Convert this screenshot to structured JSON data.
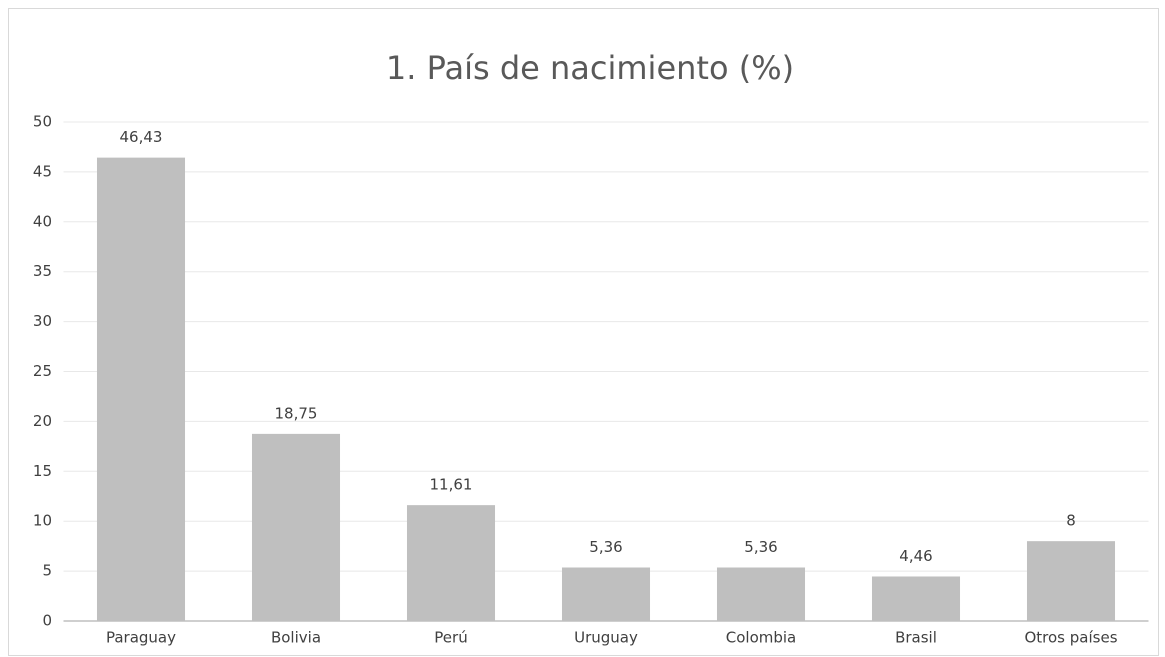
{
  "chart_data": {
    "type": "bar",
    "title": "1. País de nacimiento (%)",
    "categories": [
      "Paraguay",
      "Bolivia",
      "Perú",
      "Uruguay",
      "Colombia",
      "Brasil",
      "Otros países"
    ],
    "values": [
      46.43,
      18.75,
      11.61,
      5.36,
      5.36,
      4.46,
      8
    ],
    "value_labels": [
      "46,43",
      "18,75",
      "11,61",
      "5,36",
      "5,36",
      "4,46",
      "8"
    ],
    "color": "#bfbfbf",
    "ylim": [
      0,
      50
    ],
    "yticks": [
      0,
      5,
      10,
      15,
      20,
      25,
      30,
      35,
      40,
      45,
      50
    ],
    "grid": true
  }
}
